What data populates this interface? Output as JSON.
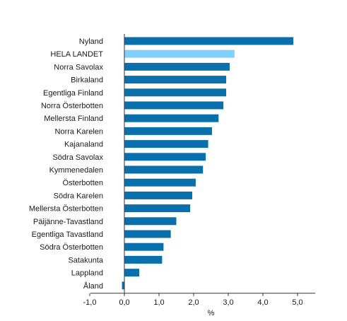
{
  "chart_data": {
    "type": "bar",
    "orientation": "horizontal",
    "title": "",
    "xlabel": "%",
    "ylabel": "",
    "xlim": [
      -1.0,
      5.5
    ],
    "xticks": [
      -1.0,
      0.0,
      1.0,
      2.0,
      3.0,
      4.0,
      5.0
    ],
    "xtick_labels": [
      "-1,0",
      "0,0",
      "1,0",
      "2,0",
      "3,0",
      "4,0",
      "5,0"
    ],
    "grid": false,
    "legend": "none",
    "categories": [
      "Nyland",
      "HELA LANDET",
      "Norra Savolax",
      "Birkaland",
      "Egentliga Finland",
      "Norra Österbotten",
      "Mellersta Finland",
      "Norra Karelen",
      "Kajanaland",
      "Södra Savolax",
      "Kymmenedalen",
      "Österbotten",
      "Södra Karelen",
      "Mellersta Österbotten",
      "Päijänne-Tavastland",
      "Egentliga Tavastland",
      "Södra Österbotten",
      "Satakunta",
      "Lappland",
      "Åland"
    ],
    "values": [
      4.88,
      3.18,
      3.04,
      2.94,
      2.94,
      2.86,
      2.72,
      2.53,
      2.42,
      2.35,
      2.27,
      2.06,
      1.96,
      1.9,
      1.5,
      1.34,
      1.13,
      1.09,
      0.43,
      -0.07
    ],
    "highlight_category": "HELA LANDET",
    "colors": {
      "bar": "#0a70ac",
      "highlight": "#7fcfff",
      "axis": "#333333"
    }
  }
}
